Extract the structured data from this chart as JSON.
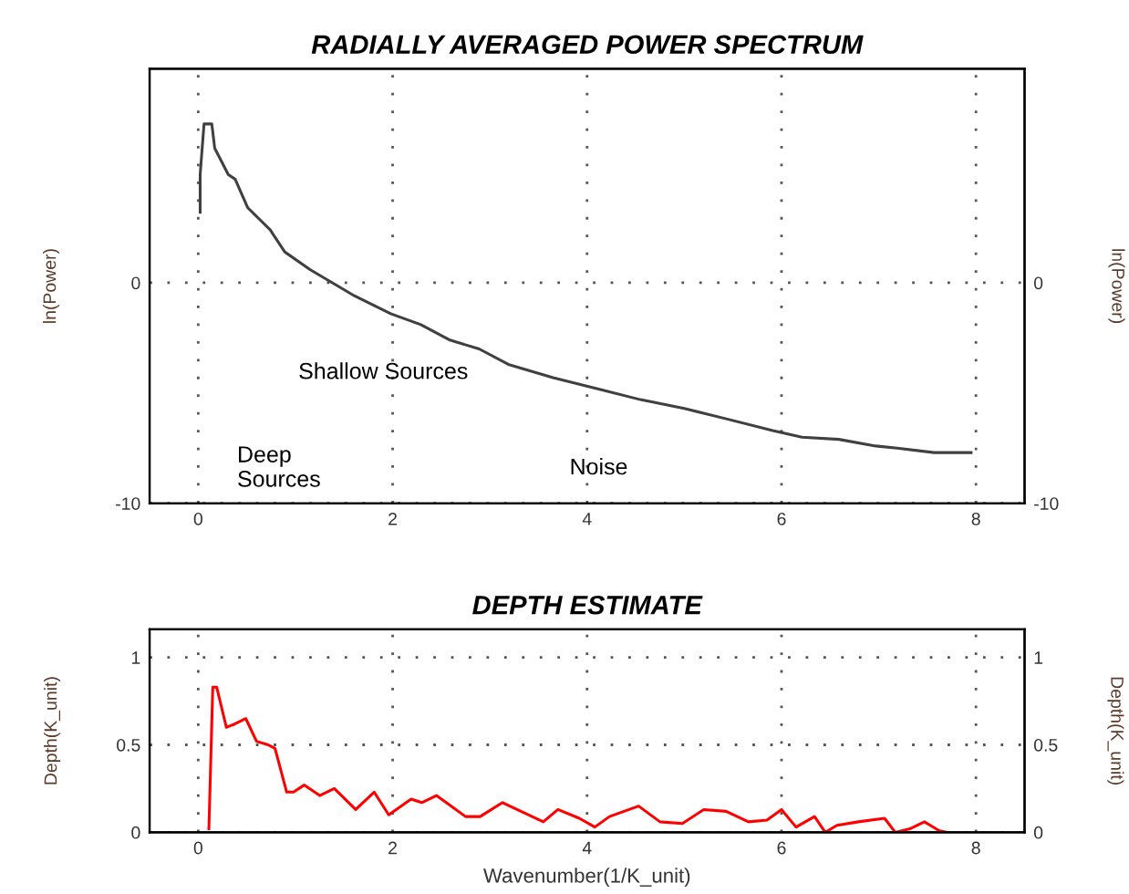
{
  "chart_data": [
    {
      "type": "line",
      "title": "RADIALLY AVERAGED POWER SPECTRUM",
      "ylabel": "ln(Power)",
      "y2label": "ln(Power)",
      "series": [
        {
          "color": "#404040",
          "x": [
            0.02,
            0.02,
            0.06,
            0.14,
            0.17,
            0.31,
            0.38,
            0.51,
            0.74,
            0.89,
            1.15,
            1.38,
            1.61,
            1.98,
            2.29,
            2.59,
            2.89,
            3.19,
            3.65,
            4.1,
            4.55,
            5.0,
            5.46,
            5.91,
            6.21,
            6.59,
            6.97,
            7.19,
            7.57,
            7.95
          ],
          "values": [
            3.2,
            4.9,
            7.2,
            7.2,
            6.1,
            4.9,
            4.7,
            3.4,
            2.4,
            1.4,
            0.6,
            0.0,
            -0.6,
            -1.4,
            -1.9,
            -2.6,
            -3.0,
            -3.7,
            -4.3,
            -4.8,
            -5.3,
            -5.7,
            -6.2,
            -6.7,
            -7.0,
            -7.1,
            -7.4,
            -7.5,
            -7.7,
            -7.7
          ]
        }
      ],
      "xlim": [
        -0.5,
        8.5
      ],
      "xticks": [
        0,
        2,
        4,
        6,
        8
      ],
      "ylim": [
        -10,
        9.7
      ],
      "yticks": [
        -10,
        0
      ],
      "y2lim": [
        -10,
        9.7
      ],
      "y2ticks": [
        -10,
        0
      ],
      "grid": true,
      "annotations": [
        "Shallow Sources",
        "Deep\nSources",
        "Noise"
      ]
    },
    {
      "type": "line",
      "title": "DEPTH ESTIMATE",
      "xlabel": "Wavenumber(1/K_unit)",
      "ylabel": "Depth(K_unit)",
      "y2label": "Depth(K_unit)",
      "series": [
        {
          "color": "#ff0000",
          "x": [
            0.11,
            0.15,
            0.19,
            0.29,
            0.38,
            0.49,
            0.6,
            0.72,
            0.79,
            0.91,
            0.98,
            1.09,
            1.25,
            1.4,
            1.62,
            1.81,
            1.96,
            2.19,
            2.3,
            2.45,
            2.6,
            2.75,
            2.9,
            3.13,
            3.32,
            3.55,
            3.7,
            3.92,
            4.08,
            4.23,
            4.53,
            4.75,
            4.98,
            5.2,
            5.43,
            5.66,
            5.85,
            6.0,
            6.15,
            6.34,
            6.45,
            6.57,
            6.79,
            7.06,
            7.17,
            7.32,
            7.47,
            7.62,
            7.7
          ],
          "values": [
            0.02,
            0.83,
            0.83,
            0.6,
            0.62,
            0.65,
            0.52,
            0.5,
            0.48,
            0.23,
            0.23,
            0.27,
            0.21,
            0.25,
            0.13,
            0.23,
            0.1,
            0.19,
            0.17,
            0.21,
            0.15,
            0.09,
            0.09,
            0.17,
            0.12,
            0.06,
            0.13,
            0.08,
            0.03,
            0.09,
            0.15,
            0.06,
            0.05,
            0.13,
            0.12,
            0.06,
            0.07,
            0.13,
            0.03,
            0.09,
            0.0,
            0.04,
            0.06,
            0.08,
            0.0,
            0.02,
            0.06,
            0.01,
            0.0
          ]
        }
      ],
      "xlim": [
        -0.5,
        8.5
      ],
      "xticks": [
        0,
        2,
        4,
        6,
        8
      ],
      "ylim": [
        0,
        1.16
      ],
      "yticks": [
        0,
        0.5,
        1
      ],
      "y2lim": [
        0,
        1.16
      ],
      "y2ticks": [
        0,
        0.5,
        1
      ],
      "grid": true
    }
  ]
}
